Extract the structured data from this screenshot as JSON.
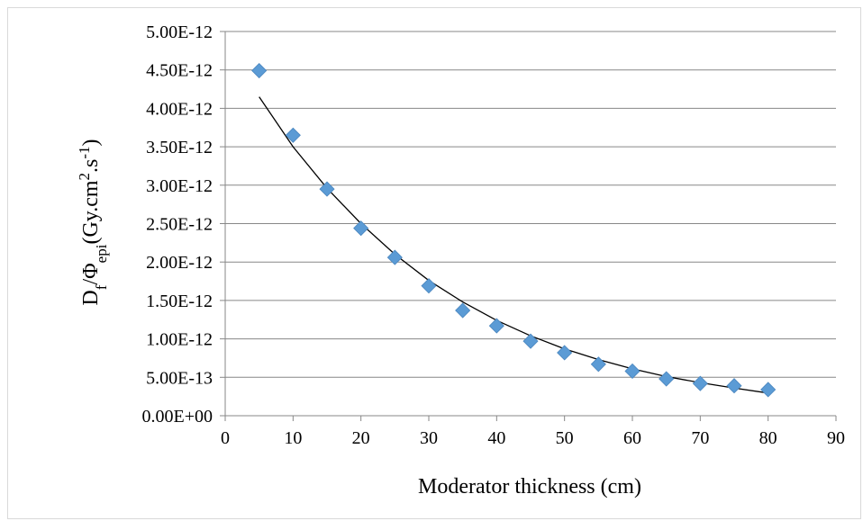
{
  "chart_data": {
    "type": "scatter",
    "xlabel": "Moderator thickness (cm)",
    "ylabel": {
      "parts": [
        {
          "text": "D",
          "shift": "none"
        },
        {
          "text": "f",
          "shift": "sub"
        },
        {
          "text": "/Φ",
          "shift": "none"
        },
        {
          "text": "epi",
          "shift": "sub"
        },
        {
          "text": "(Gy.cm",
          "shift": "none"
        },
        {
          "text": "2",
          "shift": "super"
        },
        {
          "text": ".s",
          "shift": "none"
        },
        {
          "text": "-1",
          "shift": "super"
        },
        {
          "text": ")",
          "shift": "none"
        }
      ]
    },
    "xlim": [
      0,
      90
    ],
    "ylim": [
      0,
      5e-12
    ],
    "x_ticks": [
      "0",
      "10",
      "20",
      "30",
      "40",
      "50",
      "60",
      "70",
      "80",
      "90"
    ],
    "y_ticks": [
      "0.00E+00",
      "5.00E-13",
      "1.00E-12",
      "1.50E-12",
      "2.00E-12",
      "2.50E-12",
      "3.00E-12",
      "3.50E-12",
      "4.00E-12",
      "4.50E-12",
      "5.00E-12"
    ],
    "grid": "horizontal",
    "legend": "none",
    "series": [
      {
        "marker": "diamond",
        "color": "#5b9bd5",
        "x": [
          5,
          10,
          15,
          20,
          25,
          30,
          35,
          40,
          45,
          50,
          55,
          60,
          65,
          70,
          75,
          80
        ],
        "y": [
          4.49e-12,
          3.65e-12,
          2.95e-12,
          2.44e-12,
          2.06e-12,
          1.69e-12,
          1.37e-12,
          1.17e-12,
          9.7e-13,
          8.2e-13,
          6.7e-13,
          5.8e-13,
          4.8e-13,
          4.2e-13,
          3.9e-13,
          3.4e-13
        ]
      }
    ],
    "trendline": {
      "type": "exponential",
      "color": "#000000",
      "x": [
        5,
        10,
        15,
        20,
        25,
        30,
        35,
        40,
        45,
        50,
        55,
        60,
        65,
        70,
        75,
        80
      ],
      "y": [
        4.15e-12,
        3.5e-12,
        2.96e-12,
        2.5e-12,
        2.1e-12,
        1.76e-12,
        1.48e-12,
        1.24e-12,
        1.04e-12,
        8.7e-13,
        7.3e-13,
        6.1e-13,
        5.1e-13,
        4.3e-13,
        3.6e-13,
        2.95e-13
      ]
    }
  }
}
